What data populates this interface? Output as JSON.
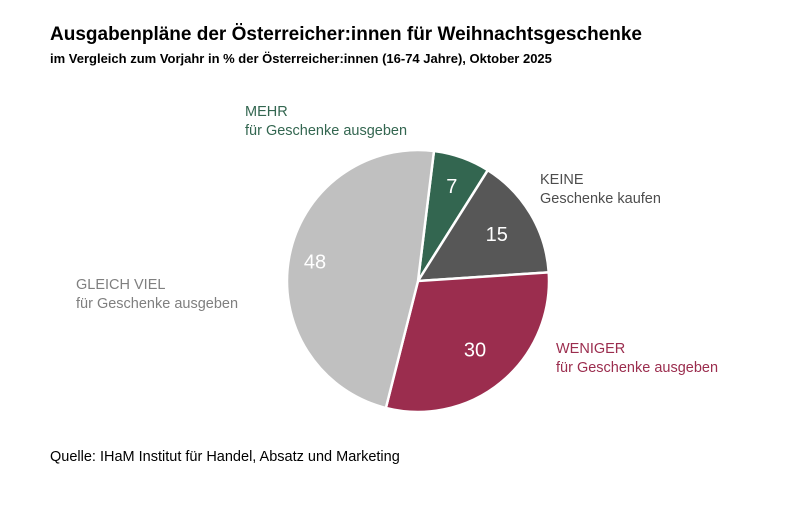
{
  "chart_data": {
    "type": "pie",
    "title": "Ausgabenpläne  der Österreicher:innen für Weihnachtsgeschenke",
    "subtitle": "im Vergleich zum Vorjahr in % der Österreicher:innen (16-74  Jahre), Oktober 2025",
    "slices": [
      {
        "label_line1": "MEHR",
        "label_line2": "für Geschenke ausgeben",
        "value": 7,
        "color": "#336650"
      },
      {
        "label_line1": "KEINE",
        "label_line2": "Geschenke kaufen",
        "value": 15,
        "color": "#575757"
      },
      {
        "label_line1": "WENIGER",
        "label_line2": "für Geschenke ausgeben",
        "value": 30,
        "color": "#9b2d4e"
      },
      {
        "label_line1": "GLEICH VIEL",
        "label_line2": "für Geschenke ausgeben",
        "value": 48,
        "color": "#c0c0c0"
      }
    ],
    "label_colors": [
      "#336650",
      "#4d4d4d",
      "#9b2d4e",
      "#7f7f7f"
    ],
    "value_label_color": "#ffffff"
  },
  "source": "Quelle: IHaM Institut für Handel, Absatz und Marketing"
}
